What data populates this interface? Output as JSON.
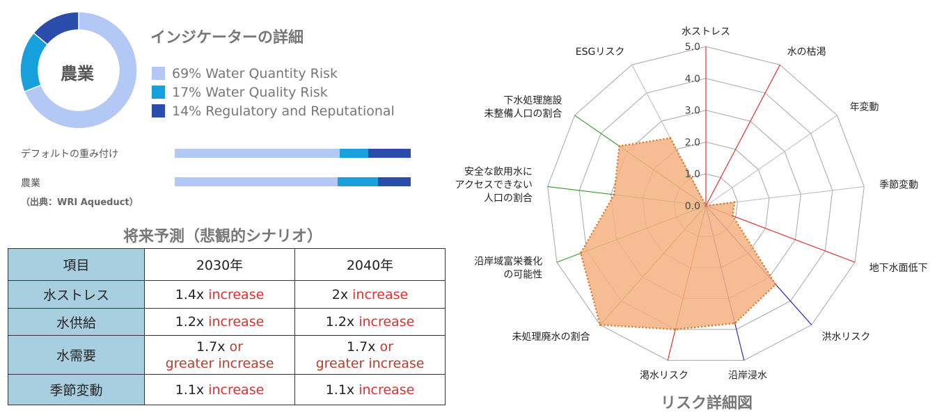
{
  "donut": {
    "center_label": "農業",
    "segments": [
      {
        "value": 69,
        "color": "#b3c8f5"
      },
      {
        "value": 17,
        "color": "#17a0dc"
      },
      {
        "value": 14,
        "color": "#2a4dab"
      }
    ]
  },
  "indicator": {
    "title": "インジケーターの詳細",
    "legend": [
      {
        "text": "69% Water Quantity Risk",
        "color": "#b3c8f5"
      },
      {
        "text": "17% Water Quality Risk",
        "color": "#17a0dc"
      },
      {
        "text": "14% Regulatory and Reputational",
        "color": "#2a4dab"
      }
    ]
  },
  "weight_bars": [
    {
      "label": "デフォルトの重み付け",
      "shares": [
        0.7,
        0.12,
        0.18
      ]
    },
    {
      "label": "農業",
      "shares": [
        0.69,
        0.17,
        0.14
      ]
    }
  ],
  "source": "（出典：WRI Aqueduct）",
  "forecast": {
    "title": "将来予測（悲観的シナリオ）",
    "headers": [
      "項目",
      "2030年",
      "2040年"
    ],
    "rows": [
      {
        "item": "水ストレス",
        "c2030": {
          "num": "1.4x ",
          "txt": "increase"
        },
        "c2040": {
          "num": "2x ",
          "txt": "increase"
        }
      },
      {
        "item": "水供給",
        "c2030": {
          "num": "1.2x ",
          "txt": "increase"
        },
        "c2040": {
          "num": "1.2x ",
          "txt": "increase"
        }
      },
      {
        "item": "水需要",
        "c2030": {
          "num": "1.7x ",
          "txt": "or",
          "line2": "greater increase"
        },
        "c2040": {
          "num": "1.7x ",
          "txt": "or",
          "line2": "greater increase"
        }
      },
      {
        "item": "季節変動",
        "c2030": {
          "num": "1.1x ",
          "txt": "increase"
        },
        "c2040": {
          "num": "1.1x ",
          "txt": "increase"
        }
      }
    ]
  },
  "chart_data": {
    "type": "radar",
    "title": "リスク詳細図",
    "rmax": 5.0,
    "ticks": [
      "0.0",
      "1.0",
      "2.0",
      "3.0",
      "4.0",
      "5.0"
    ],
    "axes": [
      {
        "label": "水ストレス",
        "value": 0.0,
        "color": "#e02020"
      },
      {
        "label": "水の枯渇",
        "value": 0.0,
        "color": "#e02020"
      },
      {
        "label": "年変動",
        "value": 0.0,
        "color": "#bfbfbf"
      },
      {
        "label": "季節変動",
        "value": 0.9,
        "color": "#bfbfbf"
      },
      {
        "label": "地下水面低下",
        "value": 0.9,
        "color": "#e02020"
      },
      {
        "label": "洪水リスク",
        "value": 3.3,
        "color": "#1a1acc"
      },
      {
        "label": "沿岸浸水",
        "value": 3.8,
        "color": "#1a1acc"
      },
      {
        "label": "渇水リスク",
        "value": 4.0,
        "color": "#e02020"
      },
      {
        "label": "未処理廃水の割合",
        "value": 5.0,
        "color": "#2e9a2e"
      },
      {
        "label": "沿岸域富栄養化\nの可能性",
        "value": 4.2,
        "color": "#2e9a2e"
      },
      {
        "label": "安全な飲用水に\nアクセスできない\n人口の割合",
        "value": 2.9,
        "color": "#2e9a2e"
      },
      {
        "label": "下水処理施設\n未整備人口の割合",
        "value": 3.3,
        "color": "#2e9a2e"
      },
      {
        "label": "ESGリスク",
        "value": 2.4,
        "color": "#bfbfbf"
      }
    ],
    "fill_color": "#f4b183",
    "line_color": "#d9792a"
  }
}
